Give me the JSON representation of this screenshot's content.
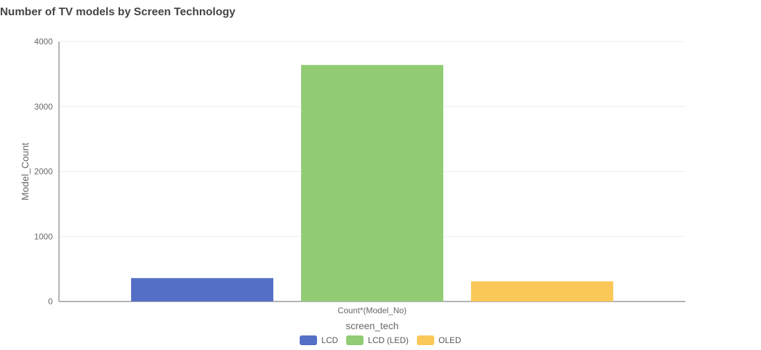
{
  "title": "Number of TV models by Screen Technology",
  "chart_data": {
    "type": "bar",
    "title": "Number of TV models by Screen Technology",
    "categories": [
      "Count*(Model_No)"
    ],
    "xlabel": "screen_tech",
    "ylabel": "Model_Count",
    "ylim": [
      0,
      4000
    ],
    "yticks": [
      "0",
      "1000",
      "2000",
      "3000",
      "4000"
    ],
    "grid": true,
    "legend_position": "bottom",
    "series": [
      {
        "name": "LCD",
        "values": [
          360
        ],
        "color": "#5470c6"
      },
      {
        "name": "LCD (LED)",
        "values": [
          3640
        ],
        "color": "#91cc75"
      },
      {
        "name": "OLED",
        "values": [
          310
        ],
        "color": "#fac858"
      }
    ]
  }
}
